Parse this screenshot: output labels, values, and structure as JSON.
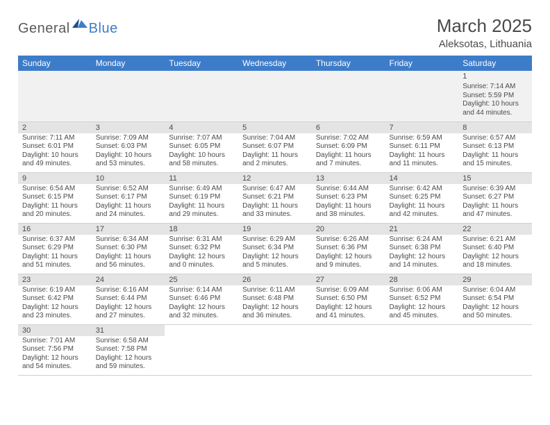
{
  "logo": {
    "part1": "General",
    "part2": "Blue"
  },
  "title": {
    "month": "March 2025",
    "location": "Aleksotas, Lithuania"
  },
  "styling": {
    "header_bg": "#3d7cc9",
    "header_text": "#ffffff",
    "daynum_bg": "#e4e4e4",
    "first_row_bg": "#f1f1f1",
    "border_color": "#d0d0d0",
    "body_text": "#4a4a4a",
    "font_family": "Arial",
    "month_fontsize": 26,
    "location_fontsize": 15,
    "daylabel_fontsize": 12,
    "daynum_fontsize": 11,
    "content_fontsize": 10
  },
  "daylabels": [
    "Sunday",
    "Monday",
    "Tuesday",
    "Wednesday",
    "Thursday",
    "Friday",
    "Saturday"
  ],
  "weeks": [
    [
      null,
      null,
      null,
      null,
      null,
      null,
      {
        "n": "1",
        "sr": "Sunrise: 7:14 AM",
        "ss": "Sunset: 5:59 PM",
        "dl1": "Daylight: 10 hours",
        "dl2": "and 44 minutes."
      }
    ],
    [
      {
        "n": "2",
        "sr": "Sunrise: 7:11 AM",
        "ss": "Sunset: 6:01 PM",
        "dl1": "Daylight: 10 hours",
        "dl2": "and 49 minutes."
      },
      {
        "n": "3",
        "sr": "Sunrise: 7:09 AM",
        "ss": "Sunset: 6:03 PM",
        "dl1": "Daylight: 10 hours",
        "dl2": "and 53 minutes."
      },
      {
        "n": "4",
        "sr": "Sunrise: 7:07 AM",
        "ss": "Sunset: 6:05 PM",
        "dl1": "Daylight: 10 hours",
        "dl2": "and 58 minutes."
      },
      {
        "n": "5",
        "sr": "Sunrise: 7:04 AM",
        "ss": "Sunset: 6:07 PM",
        "dl1": "Daylight: 11 hours",
        "dl2": "and 2 minutes."
      },
      {
        "n": "6",
        "sr": "Sunrise: 7:02 AM",
        "ss": "Sunset: 6:09 PM",
        "dl1": "Daylight: 11 hours",
        "dl2": "and 7 minutes."
      },
      {
        "n": "7",
        "sr": "Sunrise: 6:59 AM",
        "ss": "Sunset: 6:11 PM",
        "dl1": "Daylight: 11 hours",
        "dl2": "and 11 minutes."
      },
      {
        "n": "8",
        "sr": "Sunrise: 6:57 AM",
        "ss": "Sunset: 6:13 PM",
        "dl1": "Daylight: 11 hours",
        "dl2": "and 15 minutes."
      }
    ],
    [
      {
        "n": "9",
        "sr": "Sunrise: 6:54 AM",
        "ss": "Sunset: 6:15 PM",
        "dl1": "Daylight: 11 hours",
        "dl2": "and 20 minutes."
      },
      {
        "n": "10",
        "sr": "Sunrise: 6:52 AM",
        "ss": "Sunset: 6:17 PM",
        "dl1": "Daylight: 11 hours",
        "dl2": "and 24 minutes."
      },
      {
        "n": "11",
        "sr": "Sunrise: 6:49 AM",
        "ss": "Sunset: 6:19 PM",
        "dl1": "Daylight: 11 hours",
        "dl2": "and 29 minutes."
      },
      {
        "n": "12",
        "sr": "Sunrise: 6:47 AM",
        "ss": "Sunset: 6:21 PM",
        "dl1": "Daylight: 11 hours",
        "dl2": "and 33 minutes."
      },
      {
        "n": "13",
        "sr": "Sunrise: 6:44 AM",
        "ss": "Sunset: 6:23 PM",
        "dl1": "Daylight: 11 hours",
        "dl2": "and 38 minutes."
      },
      {
        "n": "14",
        "sr": "Sunrise: 6:42 AM",
        "ss": "Sunset: 6:25 PM",
        "dl1": "Daylight: 11 hours",
        "dl2": "and 42 minutes."
      },
      {
        "n": "15",
        "sr": "Sunrise: 6:39 AM",
        "ss": "Sunset: 6:27 PM",
        "dl1": "Daylight: 11 hours",
        "dl2": "and 47 minutes."
      }
    ],
    [
      {
        "n": "16",
        "sr": "Sunrise: 6:37 AM",
        "ss": "Sunset: 6:29 PM",
        "dl1": "Daylight: 11 hours",
        "dl2": "and 51 minutes."
      },
      {
        "n": "17",
        "sr": "Sunrise: 6:34 AM",
        "ss": "Sunset: 6:30 PM",
        "dl1": "Daylight: 11 hours",
        "dl2": "and 56 minutes."
      },
      {
        "n": "18",
        "sr": "Sunrise: 6:31 AM",
        "ss": "Sunset: 6:32 PM",
        "dl1": "Daylight: 12 hours",
        "dl2": "and 0 minutes."
      },
      {
        "n": "19",
        "sr": "Sunrise: 6:29 AM",
        "ss": "Sunset: 6:34 PM",
        "dl1": "Daylight: 12 hours",
        "dl2": "and 5 minutes."
      },
      {
        "n": "20",
        "sr": "Sunrise: 6:26 AM",
        "ss": "Sunset: 6:36 PM",
        "dl1": "Daylight: 12 hours",
        "dl2": "and 9 minutes."
      },
      {
        "n": "21",
        "sr": "Sunrise: 6:24 AM",
        "ss": "Sunset: 6:38 PM",
        "dl1": "Daylight: 12 hours",
        "dl2": "and 14 minutes."
      },
      {
        "n": "22",
        "sr": "Sunrise: 6:21 AM",
        "ss": "Sunset: 6:40 PM",
        "dl1": "Daylight: 12 hours",
        "dl2": "and 18 minutes."
      }
    ],
    [
      {
        "n": "23",
        "sr": "Sunrise: 6:19 AM",
        "ss": "Sunset: 6:42 PM",
        "dl1": "Daylight: 12 hours",
        "dl2": "and 23 minutes."
      },
      {
        "n": "24",
        "sr": "Sunrise: 6:16 AM",
        "ss": "Sunset: 6:44 PM",
        "dl1": "Daylight: 12 hours",
        "dl2": "and 27 minutes."
      },
      {
        "n": "25",
        "sr": "Sunrise: 6:14 AM",
        "ss": "Sunset: 6:46 PM",
        "dl1": "Daylight: 12 hours",
        "dl2": "and 32 minutes."
      },
      {
        "n": "26",
        "sr": "Sunrise: 6:11 AM",
        "ss": "Sunset: 6:48 PM",
        "dl1": "Daylight: 12 hours",
        "dl2": "and 36 minutes."
      },
      {
        "n": "27",
        "sr": "Sunrise: 6:09 AM",
        "ss": "Sunset: 6:50 PM",
        "dl1": "Daylight: 12 hours",
        "dl2": "and 41 minutes."
      },
      {
        "n": "28",
        "sr": "Sunrise: 6:06 AM",
        "ss": "Sunset: 6:52 PM",
        "dl1": "Daylight: 12 hours",
        "dl2": "and 45 minutes."
      },
      {
        "n": "29",
        "sr": "Sunrise: 6:04 AM",
        "ss": "Sunset: 6:54 PM",
        "dl1": "Daylight: 12 hours",
        "dl2": "and 50 minutes."
      }
    ],
    [
      {
        "n": "30",
        "sr": "Sunrise: 7:01 AM",
        "ss": "Sunset: 7:56 PM",
        "dl1": "Daylight: 12 hours",
        "dl2": "and 54 minutes."
      },
      {
        "n": "31",
        "sr": "Sunrise: 6:58 AM",
        "ss": "Sunset: 7:58 PM",
        "dl1": "Daylight: 12 hours",
        "dl2": "and 59 minutes."
      },
      null,
      null,
      null,
      null,
      null
    ]
  ]
}
